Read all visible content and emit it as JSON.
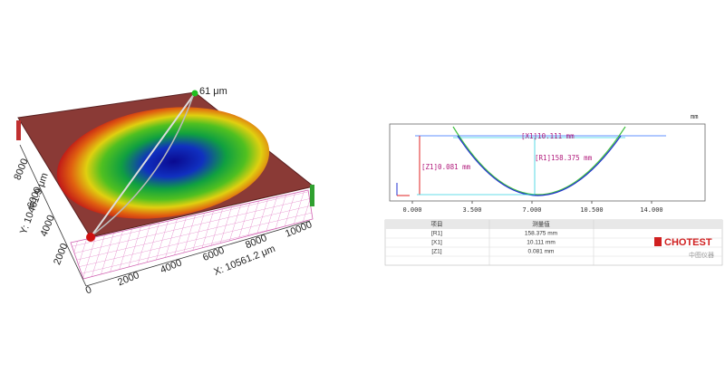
{
  "surface_view": {
    "z_label": "61 μm",
    "x_label": "X: 10561.2 μm",
    "y_label": "Y: 10461.9 μm",
    "x_ticks": [
      "0",
      "2000",
      "4000",
      "6000",
      "8000",
      "10000"
    ],
    "y_ticks": [
      "2000",
      "4000",
      "6000",
      "8000"
    ]
  },
  "profile_view": {
    "unit": "mm",
    "annotations": {
      "x1": "[X1]10.111 mm",
      "r1": "[R1]158.375 mm",
      "z1": "[Z1]0.081 mm"
    },
    "x_ticks": [
      "0.000",
      "3.500",
      "7.000",
      "10.500",
      "14.000"
    ]
  },
  "table": {
    "header": [
      "项目",
      "测量值"
    ],
    "rows": [
      [
        "[R1]",
        "158.375 mm"
      ],
      [
        "[X1]",
        "10.111 mm"
      ],
      [
        "[Z1]",
        "0.081 mm"
      ]
    ]
  },
  "logo": {
    "name": "CHOTEST",
    "subtitle": "中图仪器"
  }
}
